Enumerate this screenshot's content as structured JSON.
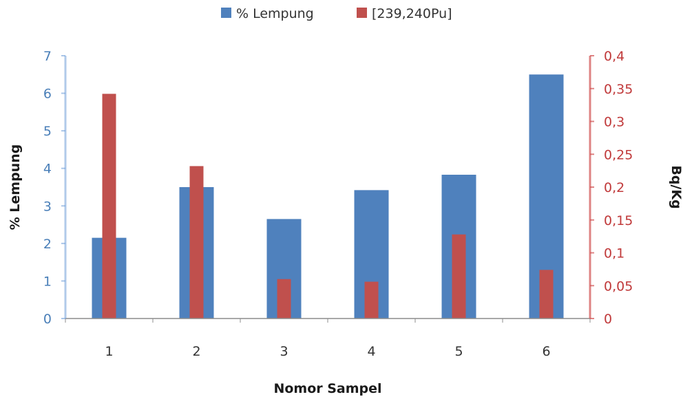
{
  "chart_data": {
    "type": "bar",
    "categories": [
      "1",
      "2",
      "3",
      "4",
      "5",
      "6"
    ],
    "series": [
      {
        "name": "% Lempung",
        "axis": "left",
        "color": "#4f81bd",
        "values": [
          2.15,
          3.5,
          2.65,
          3.42,
          3.83,
          6.5
        ]
      },
      {
        "name": "[239,240Pu]",
        "axis": "right",
        "color": "#c0504d",
        "values": [
          0.342,
          0.232,
          0.06,
          0.056,
          0.128,
          0.074
        ]
      }
    ],
    "title": "",
    "xlabel": "Nomor Sampel",
    "ylabel_left": "% Lempung",
    "ylabel_right": "Bq/Kg",
    "ylim_left": [
      0,
      7
    ],
    "ylim_right": [
      0,
      0.4
    ],
    "yticks_left": [
      "0",
      "1",
      "2",
      "3",
      "4",
      "5",
      "6",
      "7"
    ],
    "yticks_right": [
      "0",
      "0,05",
      "0,1",
      "0,15",
      "0,2",
      "0,25",
      "0,3",
      "0,35",
      "0,4"
    ],
    "legend_position": "top-center",
    "grid": false,
    "left_axis_color": "#4a7fb8",
    "right_axis_color": "#c0393a"
  }
}
